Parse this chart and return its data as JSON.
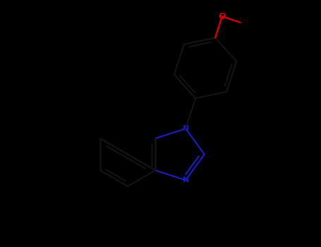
{
  "background_color": "#000000",
  "bond_color": "#111111",
  "nitrogen_color": "#1a1aaa",
  "oxygen_color": "#cc0000",
  "line_width": 1.8,
  "figsize": [
    4.55,
    3.5
  ],
  "dpi": 100,
  "xlim": [
    -2.2,
    2.8
  ],
  "ylim": [
    -2.8,
    2.2
  ],
  "N1_label": "N",
  "N3_label": "N",
  "O_label": "O"
}
